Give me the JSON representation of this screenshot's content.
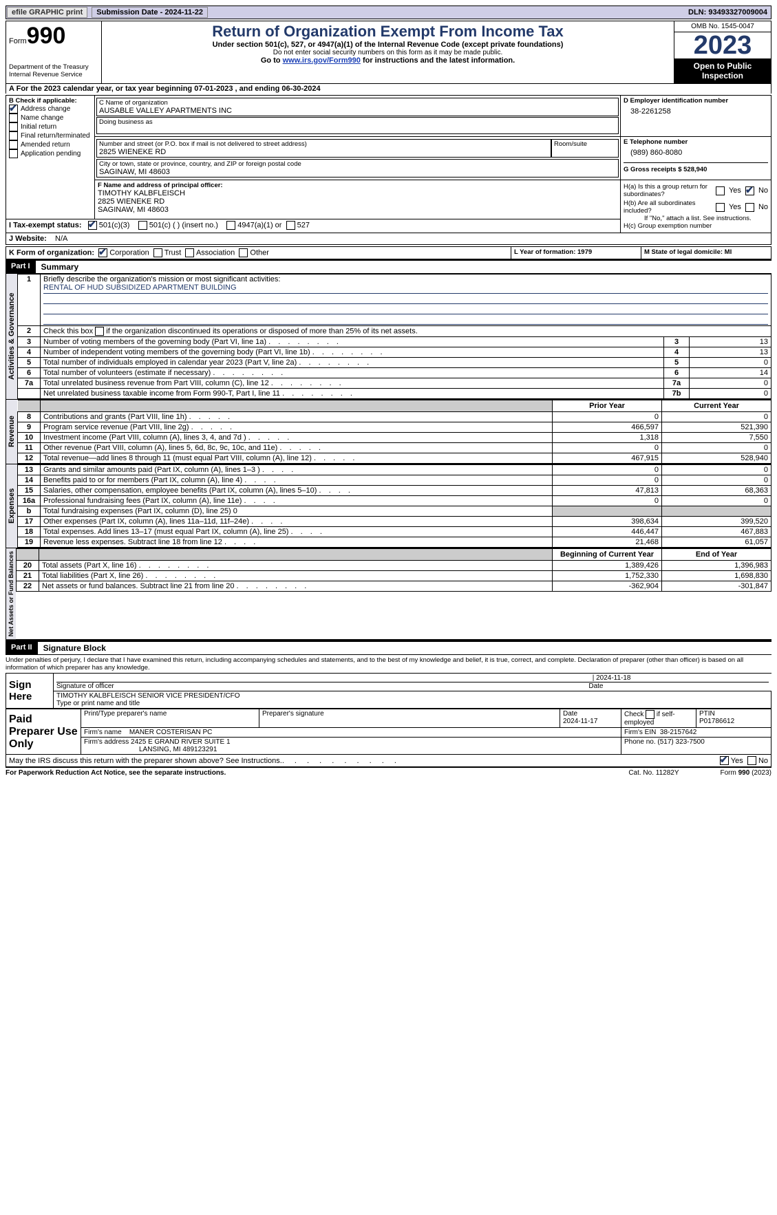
{
  "topbar": {
    "efile": "efile GRAPHIC print",
    "submission_label": "Submission Date - 2024-11-22",
    "dln_label": "DLN: 93493327009004"
  },
  "header": {
    "form_label": "Form",
    "form_num": "990",
    "dept": "Department of the Treasury",
    "irs": "Internal Revenue Service",
    "title": "Return of Organization Exempt From Income Tax",
    "sub": "Under section 501(c), 527, or 4947(a)(1) of the Internal Revenue Code (except private foundations)",
    "note": "Do not enter social security numbers on this form as it may be made public.",
    "goto_pre": "Go to ",
    "goto_link": "www.irs.gov/Form990",
    "goto_post": " for instructions and the latest information.",
    "omb": "OMB No. 1545-0047",
    "year": "2023",
    "open": "Open to Public Inspection"
  },
  "a_line": "For the 2023 calendar year, or tax year beginning 07-01-2023   , and ending 06-30-2024",
  "b": {
    "label": "B Check if applicable:",
    "items": [
      {
        "label": "Address change",
        "checked": true
      },
      {
        "label": "Name change",
        "checked": false
      },
      {
        "label": "Initial return",
        "checked": false
      },
      {
        "label": "Final return/terminated",
        "checked": false
      },
      {
        "label": "Amended return",
        "checked": false
      },
      {
        "label": "Application pending",
        "checked": false
      }
    ]
  },
  "c": {
    "name_label": "C Name of organization",
    "name": "AUSABLE VALLEY APARTMENTS INC",
    "dba_label": "Doing business as",
    "street_label": "Number and street (or P.O. box if mail is not delivered to street address)",
    "room_label": "Room/suite",
    "street": "2825 WIENEKE RD",
    "city_label": "City or town, state or province, country, and ZIP or foreign postal code",
    "city": "SAGINAW, MI  48603"
  },
  "d": {
    "label": "D Employer identification number",
    "val": "38-2261258"
  },
  "e": {
    "label": "E Telephone number",
    "val": "(989) 860-8080"
  },
  "g": {
    "label": "G Gross receipts $ 528,940"
  },
  "f": {
    "label": "F  Name and address of principal officer:",
    "line1": "TIMOTHY KALBFLEISCH",
    "line2": "2825 WIENEKE RD",
    "line3": "SAGINAW, MI  48603"
  },
  "h": {
    "a_label": "H(a)  Is this a group return for subordinates?",
    "a_no_checked": true,
    "b_label": "H(b)  Are all subordinates included?",
    "b_note": "If \"No,\" attach a list. See instructions.",
    "c_label": "H(c)  Group exemption number",
    "yes": "Yes",
    "no": "No"
  },
  "i": {
    "label": "I  Tax-exempt status:",
    "c3": "501(c)(3)",
    "c": "501(c) (  ) (insert no.)",
    "a1": "4947(a)(1) or",
    "527": "527"
  },
  "j": {
    "label": "J  Website:",
    "val": "N/A"
  },
  "k": {
    "label": "K Form of organization:",
    "corp": "Corporation",
    "trust": "Trust",
    "assoc": "Association",
    "other": "Other"
  },
  "l": "L Year of formation: 1979",
  "m": "M State of legal domicile: MI",
  "part1": {
    "num": "Part I",
    "title": "Summary"
  },
  "governance_label": "Activities & Governance",
  "revenue_label": "Revenue",
  "expenses_label": "Expenses",
  "netassets_label": "Net Assets or Fund Balances",
  "mission": {
    "label": "Briefly describe the organization's mission or most significant activities:",
    "text": "RENTAL OF HUD SUBSIDIZED APARTMENT BUILDING"
  },
  "gov_lines": {
    "2": "Check this box      if the organization discontinued its operations or disposed of more than 25% of its net assets.",
    "3": {
      "desc": "Number of voting members of the governing body (Part VI, line 1a)",
      "box": "3",
      "val": "13"
    },
    "4": {
      "desc": "Number of independent voting members of the governing body (Part VI, line 1b)",
      "box": "4",
      "val": "13"
    },
    "5": {
      "desc": "Total number of individuals employed in calendar year 2023 (Part V, line 2a)",
      "box": "5",
      "val": "0"
    },
    "6": {
      "desc": "Total number of volunteers (estimate if necessary)",
      "box": "6",
      "val": "14"
    },
    "7a": {
      "desc": "Total unrelated business revenue from Part VIII, column (C), line 12",
      "box": "7a",
      "val": "0"
    },
    "7b": {
      "desc": "Net unrelated business taxable income from Form 990-T, Part I, line 11",
      "box": "7b",
      "val": "0"
    }
  },
  "rev_header": {
    "prior": "Prior Year",
    "current": "Current Year"
  },
  "rev_lines": [
    {
      "n": "8",
      "desc": "Contributions and grants (Part VIII, line 1h)",
      "prior": "0",
      "curr": "0"
    },
    {
      "n": "9",
      "desc": "Program service revenue (Part VIII, line 2g)",
      "prior": "466,597",
      "curr": "521,390"
    },
    {
      "n": "10",
      "desc": "Investment income (Part VIII, column (A), lines 3, 4, and 7d )",
      "prior": "1,318",
      "curr": "7,550"
    },
    {
      "n": "11",
      "desc": "Other revenue (Part VIII, column (A), lines 5, 6d, 8c, 9c, 10c, and 11e)",
      "prior": "0",
      "curr": "0"
    },
    {
      "n": "12",
      "desc": "Total revenue—add lines 8 through 11 (must equal Part VIII, column (A), line 12)",
      "prior": "467,915",
      "curr": "528,940"
    }
  ],
  "exp_lines": [
    {
      "n": "13",
      "desc": "Grants and similar amounts paid (Part IX, column (A), lines 1–3 )",
      "prior": "0",
      "curr": "0"
    },
    {
      "n": "14",
      "desc": "Benefits paid to or for members (Part IX, column (A), line 4)",
      "prior": "0",
      "curr": "0"
    },
    {
      "n": "15",
      "desc": "Salaries, other compensation, employee benefits (Part IX, column (A), lines 5–10)",
      "prior": "47,813",
      "curr": "68,363"
    },
    {
      "n": "16a",
      "desc": "Professional fundraising fees (Part IX, column (A), line 11e)",
      "prior": "0",
      "curr": "0"
    },
    {
      "n": "b",
      "desc": "Total fundraising expenses (Part IX, column (D), line 25) 0",
      "prior": "",
      "curr": "",
      "shade": true
    },
    {
      "n": "17",
      "desc": "Other expenses (Part IX, column (A), lines 11a–11d, 11f–24e)",
      "prior": "398,634",
      "curr": "399,520"
    },
    {
      "n": "18",
      "desc": "Total expenses. Add lines 13–17 (must equal Part IX, column (A), line 25)",
      "prior": "446,447",
      "curr": "467,883"
    },
    {
      "n": "19",
      "desc": "Revenue less expenses. Subtract line 18 from line 12",
      "prior": "21,468",
      "curr": "61,057"
    }
  ],
  "net_header": {
    "begin": "Beginning of Current Year",
    "end": "End of Year"
  },
  "net_lines": [
    {
      "n": "20",
      "desc": "Total assets (Part X, line 16)",
      "prior": "1,389,426",
      "curr": "1,396,983"
    },
    {
      "n": "21",
      "desc": "Total liabilities (Part X, line 26)",
      "prior": "1,752,330",
      "curr": "1,698,830"
    },
    {
      "n": "22",
      "desc": "Net assets or fund balances. Subtract line 21 from line 20",
      "prior": "-362,904",
      "curr": "-301,847"
    }
  ],
  "part2": {
    "num": "Part II",
    "title": "Signature Block"
  },
  "perjury": "Under penalties of perjury, I declare that I have examined this return, including accompanying schedules and statements, and to the best of my knowledge and belief, it is true, correct, and complete. Declaration of preparer (other than officer) is based on all information of which preparer has any knowledge.",
  "sign": {
    "here": "Sign Here",
    "sig_label": "Signature of officer",
    "officer": "TIMOTHY KALBFLEISCH  SENIOR VICE PRESIDENT/CFO",
    "type_label": "Type or print name and title",
    "date": "2024-11-18",
    "date_label": "Date"
  },
  "paid": {
    "label": "Paid Preparer Use Only",
    "name_label": "Print/Type preparer's name",
    "sig_label": "Preparer's signature",
    "date_label": "Date",
    "date": "2024-11-17",
    "check_label": "Check         if self-employed",
    "ptin_label": "PTIN",
    "ptin": "P01786612",
    "firm_name_label": "Firm's name",
    "firm_name": "MANER COSTERISAN PC",
    "firm_ein_label": "Firm's EIN",
    "firm_ein": "38-2157642",
    "firm_addr_label": "Firm's address",
    "firm_addr1": "2425 E GRAND RIVER SUITE 1",
    "firm_addr2": "LANSING, MI  489123291",
    "phone_label": "Phone no.",
    "phone": "(517) 323-7500"
  },
  "discuss": {
    "text": "May the IRS discuss this return with the preparer shown above? See Instructions.",
    "yes": "Yes",
    "no": "No"
  },
  "footer": {
    "pra": "For Paperwork Reduction Act Notice, see the separate instructions.",
    "cat": "Cat. No. 11282Y",
    "form": "Form 990 (2023)"
  }
}
